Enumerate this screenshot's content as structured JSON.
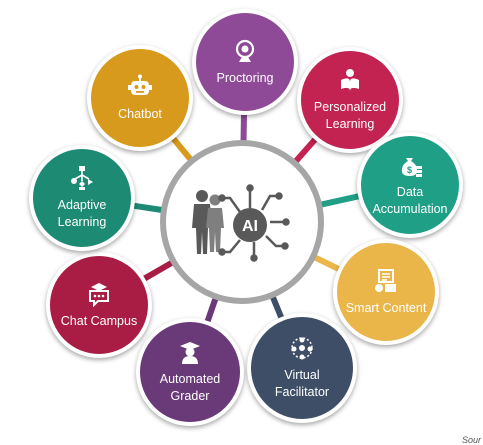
{
  "center": {
    "label": "AI"
  },
  "colors": {
    "ring": "#a6a6a6",
    "hub_dark": "#595959",
    "hub_mid": "#7f7f7f"
  },
  "nodes": [
    {
      "label": "Proctoring",
      "color": "#8e4a97",
      "icon": "webcam-icon"
    },
    {
      "label": "Personalized Learning",
      "color": "#c22350",
      "icon": "reader-icon"
    },
    {
      "label": "Data Accumulation",
      "color": "#1f9f86",
      "icon": "money-bag-icon"
    },
    {
      "label": "Smart Content",
      "color": "#eab64a",
      "icon": "content-icon"
    },
    {
      "label": "Virtual Facilitator",
      "color": "#3e4e67",
      "icon": "team-icon"
    },
    {
      "label": "Automated Grader",
      "color": "#6a3a78",
      "icon": "graduate-icon"
    },
    {
      "label": "Chat Campus",
      "color": "#a91d44",
      "icon": "chat-cap-icon"
    },
    {
      "label": "Adaptive Learning",
      "color": "#1d8a74",
      "icon": "flowchart-icon"
    },
    {
      "label": "Chatbot",
      "color": "#d89a1d",
      "icon": "robot-icon"
    }
  ],
  "source": "Sour"
}
